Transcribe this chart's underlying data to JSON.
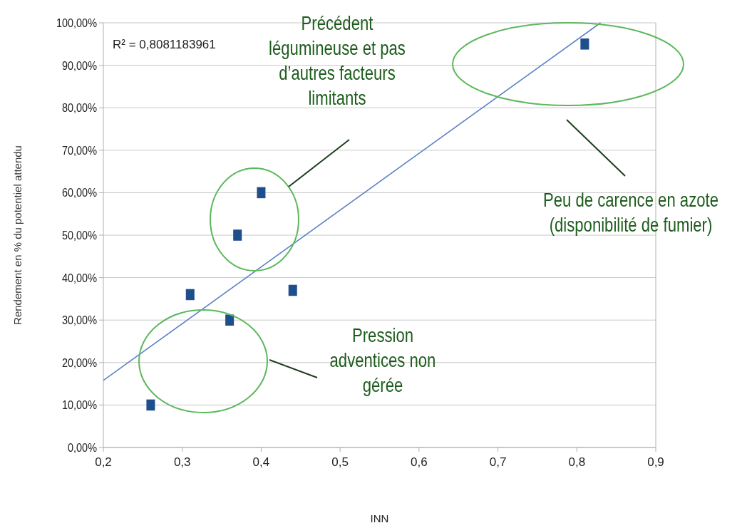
{
  "chart_data": {
    "type": "scatter",
    "xlabel": "INN",
    "ylabel": "Rendement en % du potentiel attendu",
    "xlim": [
      0.2,
      0.9
    ],
    "ylim": [
      0,
      100
    ],
    "xticks": [
      {
        "value": 0.2,
        "label": "0,2"
      },
      {
        "value": 0.3,
        "label": "0,3"
      },
      {
        "value": 0.4,
        "label": "0,4"
      },
      {
        "value": 0.5,
        "label": "0,5"
      },
      {
        "value": 0.6,
        "label": "0,6"
      },
      {
        "value": 0.7,
        "label": "0,7"
      },
      {
        "value": 0.8,
        "label": "0,8"
      },
      {
        "value": 0.9,
        "label": "0,9"
      }
    ],
    "yticks": [
      {
        "value": 0,
        "label": "0,00%"
      },
      {
        "value": 10,
        "label": "10,00%"
      },
      {
        "value": 20,
        "label": "20,00%"
      },
      {
        "value": 30,
        "label": "30,00%"
      },
      {
        "value": 40,
        "label": "40,00%"
      },
      {
        "value": 50,
        "label": "50,00%"
      },
      {
        "value": 60,
        "label": "60,00%"
      },
      {
        "value": 70,
        "label": "70,00%"
      },
      {
        "value": 80,
        "label": "80,00%"
      },
      {
        "value": 90,
        "label": "90,00%"
      },
      {
        "value": 100,
        "label": "100,00%"
      }
    ],
    "grid": "y",
    "series": [
      {
        "marker": "square",
        "color": "#1f4e8c",
        "x": [
          0.26,
          0.31,
          0.36,
          0.37,
          0.4,
          0.44,
          0.81
        ],
        "values": [
          10,
          36,
          30,
          50,
          60,
          37,
          95
        ]
      },
      {
        "type": "line",
        "color": "#5b84c4",
        "x": [
          0.2,
          0.83
        ],
        "values": [
          15.8,
          100
        ]
      }
    ],
    "annotations": [
      "R² = 0,8081183961",
      "Précédent\nlégumineuse et pas\nd’autres facteurs\nlimitants",
      "Peu de carence en azote\n(disponibilité de fumier)",
      "Pression\nadventices non\ngérée"
    ]
  }
}
